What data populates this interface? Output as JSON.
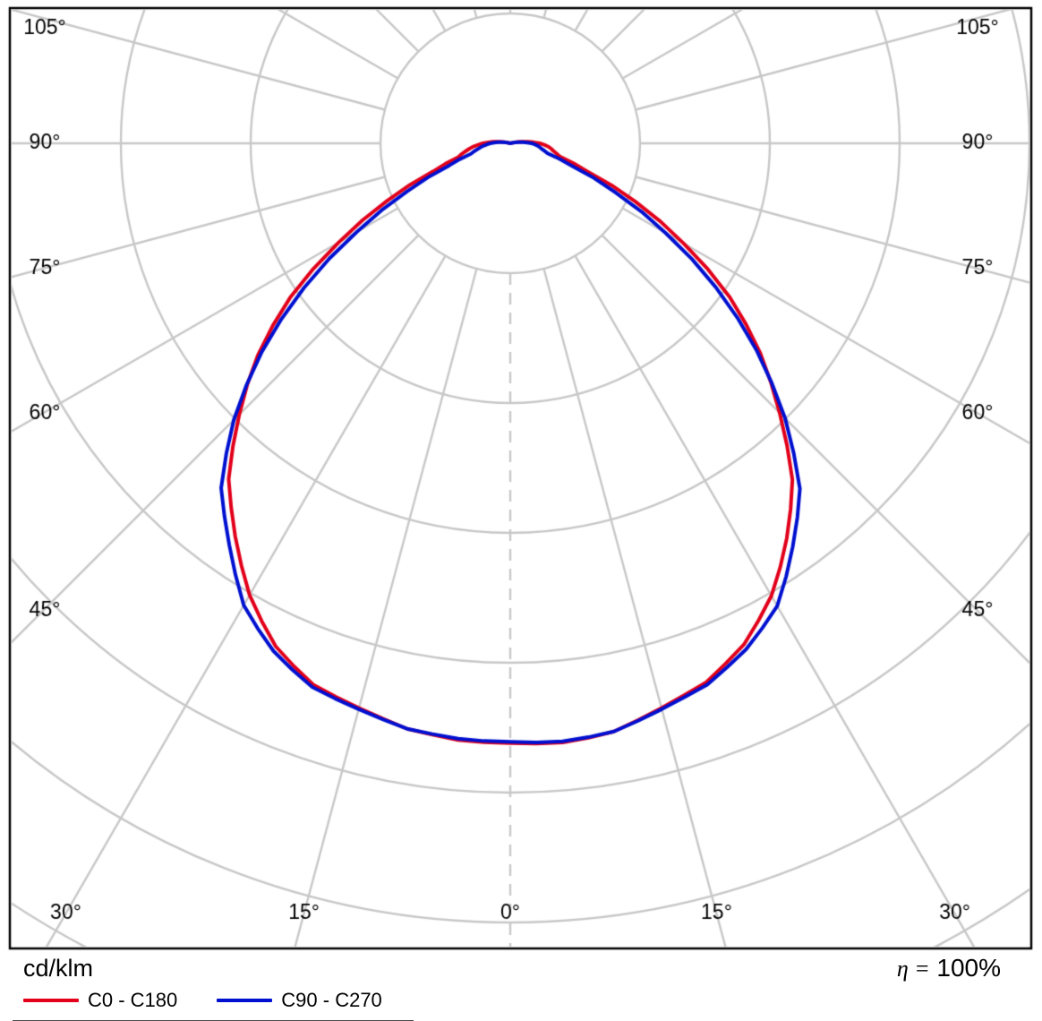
{
  "footer": {
    "unit_label": "cd/klm",
    "eta_prefix": "η =",
    "eta_value": "100%"
  },
  "legend": [
    {
      "label": "C0 - C180",
      "color": "#e2001a"
    },
    {
      "label": "C90 - C270",
      "color": "#0010d0"
    }
  ],
  "chart_data": {
    "type": "polar",
    "subtype": "luminous-intensity-distribution",
    "unit": "cd/klm",
    "efficiency": "η = 100%",
    "grid_color": "#c8c8c8",
    "frame_color": "#000000",
    "gamma_ticks_deg": [
      0,
      15,
      30,
      45,
      60,
      75,
      90,
      105
    ],
    "gamma_tick_labels": [
      "0°",
      "15°",
      "30°",
      "45°",
      "60°",
      "75°",
      "90°",
      "105°"
    ],
    "ring_step": 100,
    "rings": [
      100,
      200,
      300,
      400,
      500,
      600,
      700
    ],
    "gamma_step_deg": 5,
    "series": [
      {
        "name": "C0 - C180",
        "color": "#e2001a",
        "gamma_deg": [
          0,
          5,
          10,
          15,
          20,
          25,
          30,
          35,
          40,
          45,
          50,
          55,
          60,
          65,
          70,
          75,
          80,
          85,
          90,
          95,
          100,
          105
        ],
        "values_cd_per_klm": [
          461,
          462,
          460,
          452,
          444,
          427,
          402,
          371,
          339,
          295,
          252,
          205,
          152,
          105,
          63,
          40,
          33,
          28,
          22,
          14,
          6,
          0
        ]
      },
      {
        "name": "C90 - C270",
        "color": "#0010d0",
        "gamma_deg": [
          0,
          5,
          10,
          15,
          20,
          25,
          30,
          35,
          40,
          45,
          50,
          55,
          60,
          65,
          70,
          75,
          80,
          85,
          90,
          95,
          100,
          105
        ],
        "values_cd_per_klm": [
          460,
          461,
          460,
          453,
          446,
          431,
          411,
          379,
          348,
          301,
          248,
          192,
          136,
          88,
          50,
          30,
          24,
          20,
          16,
          10,
          4,
          0
        ]
      }
    ]
  }
}
